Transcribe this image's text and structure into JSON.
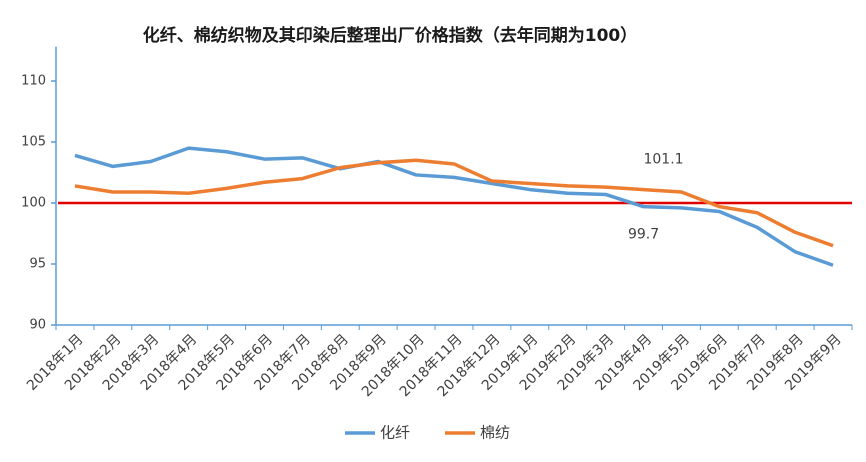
{
  "chart_data": {
    "type": "line",
    "title": "化纤、棉纺织物及其印染后整理出厂价格指数（去年同期为100）",
    "categories": [
      "2018年1月",
      "2018年2月",
      "2018年3月",
      "2018年4月",
      "2018年5月",
      "2018年6月",
      "2018年7月",
      "2018年8月",
      "2018年9月",
      "2018年10月",
      "2018年11月",
      "2018年12月",
      "2019年1月",
      "2019年2月",
      "2019年3月",
      "2019年4月",
      "2019年5月",
      "2019年6月",
      "2019年7月",
      "2019年8月",
      "2019年9月"
    ],
    "series": [
      {
        "name": "化纤",
        "color": "#5b9bd5",
        "label_index": 15,
        "values": [
          103.9,
          103.0,
          103.4,
          104.5,
          104.2,
          103.6,
          103.7,
          102.8,
          103.4,
          102.3,
          102.1,
          101.6,
          101.1,
          100.8,
          100.7,
          99.7,
          99.6,
          99.3,
          98.0,
          96.0,
          94.9
        ]
      },
      {
        "name": "棉纺",
        "color": "#ed7d31",
        "label_index": 15,
        "values": [
          101.4,
          100.9,
          100.9,
          100.8,
          101.2,
          101.7,
          102.0,
          102.9,
          103.3,
          103.5,
          103.2,
          101.8,
          101.6,
          101.4,
          101.3,
          101.1,
          100.9,
          99.7,
          99.2,
          97.6,
          96.5
        ]
      }
    ],
    "reference_line": {
      "value": 100,
      "color": "#e00000"
    },
    "ylim": [
      90,
      112
    ],
    "yticks": [
      90,
      95,
      100,
      105,
      110
    ],
    "grid": false,
    "legend": "bottom"
  }
}
